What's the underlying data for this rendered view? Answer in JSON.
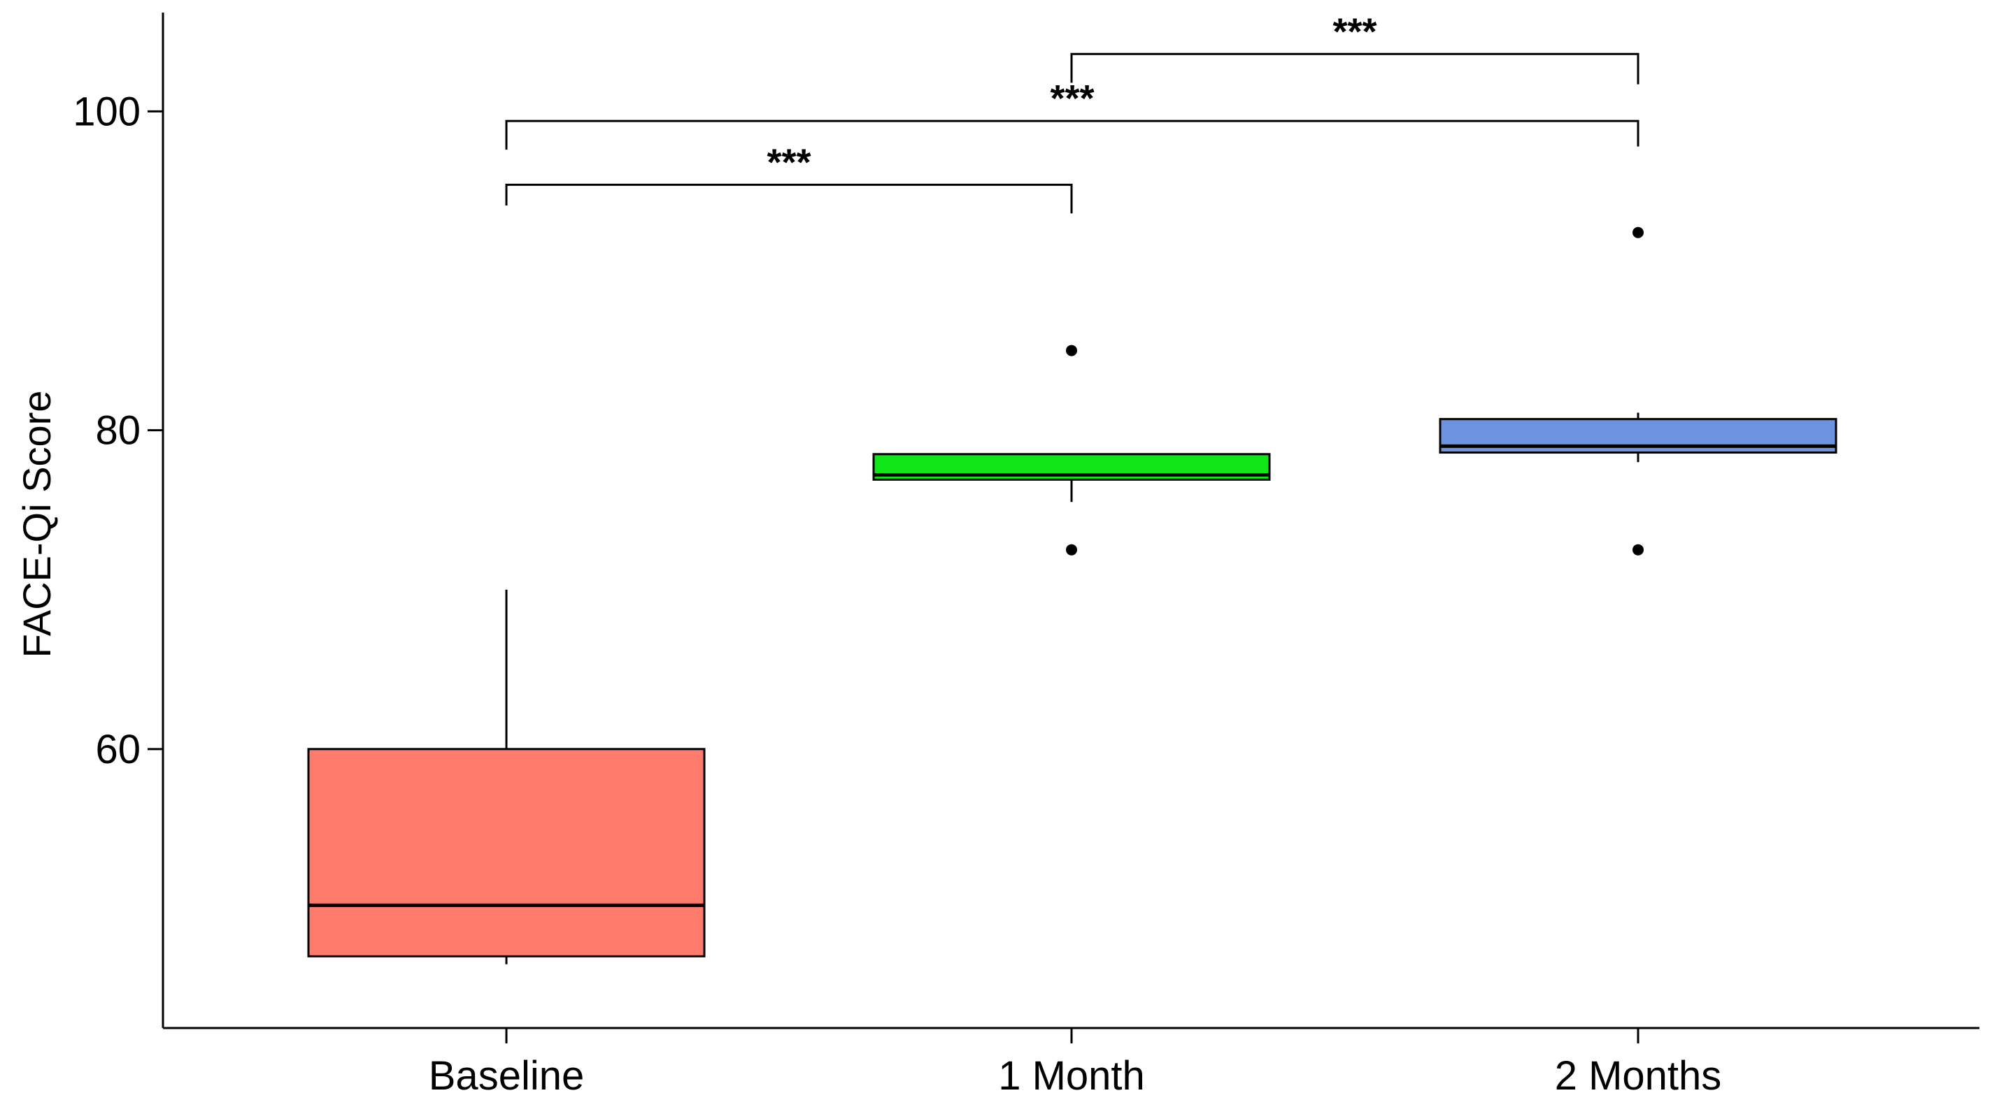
{
  "chart_data": {
    "type": "boxplot",
    "title": "",
    "xlabel": "",
    "ylabel": "FACE-Qi Score",
    "ylim": [
      42.5,
      106.2
    ],
    "yticks": [
      60,
      80,
      100
    ],
    "grid": false,
    "legend": "none",
    "categories": [
      "Baseline",
      "1 Month",
      "2 Months"
    ],
    "boxes": [
      {
        "category": "Baseline",
        "whisker_low": 46.5,
        "q1": 47,
        "median": 50.2,
        "q3": 60,
        "whisker_high": 70,
        "outliers": [],
        "color": "#ff7b6b"
      },
      {
        "category": "1 Month",
        "whisker_low": 75.5,
        "q1": 76.9,
        "median": 77.2,
        "q3": 78.5,
        "whisker_high": 78.5,
        "outliers": [
          85,
          72.5
        ],
        "color": "#11e619"
      },
      {
        "category": "2 Months",
        "whisker_low": 78,
        "q1": 78.6,
        "median": 79,
        "q3": 80.7,
        "whisker_high": 81.1,
        "outliers": [
          92.4,
          72.5
        ],
        "color": "#6b93e0"
      }
    ],
    "comparisons": [
      {
        "from": "Baseline",
        "to": "1 Month",
        "label": "***",
        "y": 95.4,
        "left_drop_to": 94.1,
        "right_drop_to": 93.6
      },
      {
        "from": "Baseline",
        "to": "2 Months",
        "label": "***",
        "y": 99.4,
        "left_drop_to": 97.6,
        "right_drop_to": 97.8
      },
      {
        "from": "1 Month",
        "to": "2 Months",
        "label": "***",
        "y": 103.6,
        "left_drop_to": 101.8,
        "right_drop_to": 101.7
      }
    ]
  }
}
